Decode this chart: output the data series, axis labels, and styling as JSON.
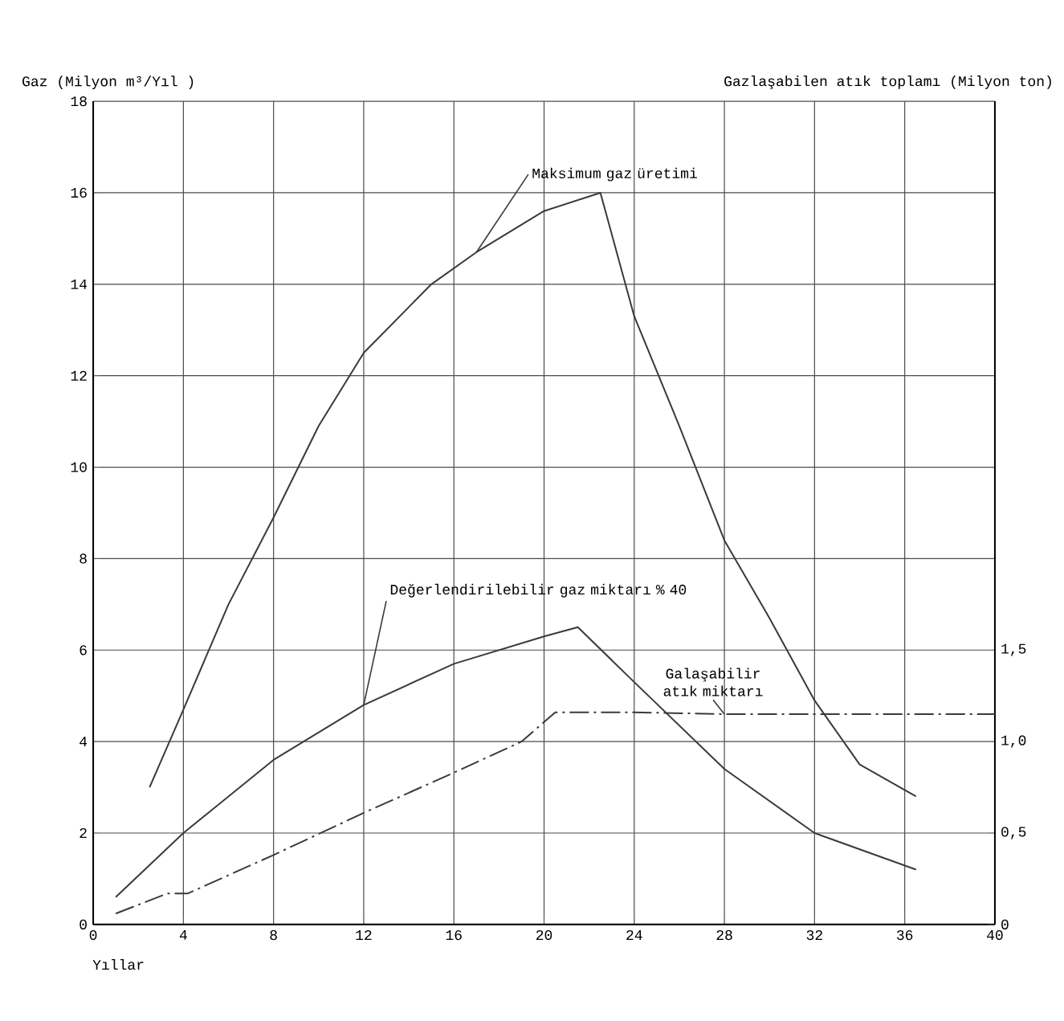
{
  "chart_data": {
    "type": "line",
    "xlabel": "Yıllar",
    "ylabel": "Gaz (Milyon m³/Yıl )",
    "y2label": "Gazlaşabilen atık toplamı (Milyon ton)",
    "xlim": [
      0,
      40
    ],
    "xticks": [
      0,
      4,
      8,
      12,
      16,
      20,
      24,
      28,
      32,
      36,
      40
    ],
    "ylim": [
      0,
      18
    ],
    "yticks": [
      0,
      2,
      4,
      6,
      8,
      10,
      12,
      14,
      16,
      18
    ],
    "y2lim": [
      0,
      4.5
    ],
    "y2ticks": [
      0,
      {
        "value": 0.5,
        "label": "0,5"
      },
      {
        "value": 1.0,
        "label": "1,0"
      },
      {
        "value": 1.5,
        "label": "1,5"
      }
    ],
    "grid": true,
    "marker": "none",
    "series": [
      {
        "name": "Maksimum gaz üretimi",
        "color": "#3a3a3a",
        "line_style": "solid",
        "x": [
          2.5,
          4,
          6,
          8,
          10,
          12,
          15,
          17,
          20,
          22.5,
          24,
          26,
          28,
          30,
          32,
          34,
          36.5
        ],
        "values": [
          3.0,
          4.7,
          7.0,
          8.9,
          10.9,
          12.5,
          14.0,
          14.7,
          15.6,
          16.0,
          13.3,
          10.9,
          8.4,
          6.7,
          4.9,
          3.5,
          2.8
        ]
      },
      {
        "name": "Değerlendirilebilir gaz miktarı % 40",
        "color": "#3a3a3a",
        "line_style": "solid",
        "x": [
          1,
          4,
          8,
          12,
          16,
          20,
          21.5,
          24,
          28,
          32,
          36.5
        ],
        "values": [
          0.6,
          2.0,
          3.6,
          4.8,
          5.7,
          6.3,
          6.5,
          5.3,
          3.4,
          2.0,
          1.2
        ]
      },
      {
        "name": "Galaşabilir atık miktarı",
        "color": "#3a3a3a",
        "line_style": "dashed",
        "axis": "y2",
        "x": [
          1,
          3.3,
          4.2,
          8,
          12,
          16,
          19,
          20.5,
          24,
          28,
          32,
          36,
          40
        ],
        "values": [
          0.06,
          0.17,
          0.17,
          0.38,
          0.61,
          0.83,
          1.0,
          1.16,
          1.16,
          1.15,
          1.15,
          1.15,
          1.15
        ]
      }
    ]
  }
}
